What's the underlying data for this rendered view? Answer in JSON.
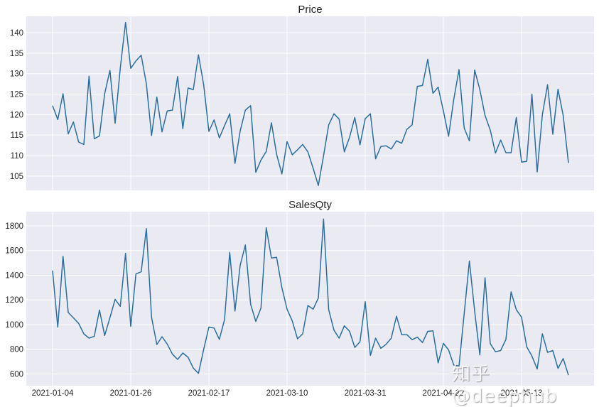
{
  "chart_data": [
    {
      "type": "line",
      "title": "Price",
      "xlabel": "",
      "ylabel": "",
      "ylim": [
        101.5,
        144
      ],
      "yticks": [
        105,
        110,
        115,
        120,
        125,
        130,
        135,
        140
      ],
      "grid": true,
      "legend": null,
      "x_tick_labels": [
        "2021-01-04",
        "2021-01-26",
        "2021-02-17",
        "2021-03-10",
        "2021-03-31",
        "2021-04-22",
        "2021-05-13"
      ],
      "x_tick_labels_visible": false,
      "series": [
        {
          "name": "Price",
          "color": "#2a6f9e",
          "values": [
            122.2,
            118.8,
            125.1,
            115.3,
            118.2,
            113.3,
            112.7,
            129.4,
            114.1,
            114.8,
            125.1,
            130.8,
            117.9,
            131.4,
            142.5,
            131.3,
            133.1,
            134.5,
            127.5,
            114.9,
            124.3,
            115.8,
            120.9,
            121.1,
            129.3,
            116.6,
            126.5,
            126.1,
            134.6,
            127.2,
            115.9,
            118.7,
            114.3,
            117.3,
            120.2,
            108.1,
            116.0,
            121.1,
            122.2,
            105.9,
            108.9,
            111.0,
            118.0,
            110.3,
            105.5,
            113.4,
            110.2,
            111.4,
            112.7,
            110.9,
            106.9,
            102.7,
            109.9,
            117.5,
            120.2,
            118.9,
            110.9,
            114.5,
            119.3,
            112.6,
            119.0,
            120.2,
            109.2,
            112.2,
            112.4,
            111.6,
            113.6,
            113.0,
            116.4,
            117.5,
            126.9,
            127.1,
            133.5,
            125.2,
            126.7,
            120.9,
            114.7,
            123.7,
            131.0,
            116.7,
            113.6,
            130.9,
            126.1,
            119.8,
            116.2,
            110.6,
            113.8,
            110.7,
            110.7,
            119.3,
            108.4,
            108.6,
            125.0,
            106.0,
            120.0,
            127.3,
            115.2,
            126.2,
            119.8,
            108.2
          ]
        }
      ]
    },
    {
      "type": "line",
      "title": "SalesQty",
      "xlabel": "",
      "ylabel": "",
      "ylim": [
        505,
        1915
      ],
      "yticks": [
        600,
        800,
        1000,
        1200,
        1400,
        1600,
        1800
      ],
      "grid": true,
      "legend": null,
      "x_tick_labels": [
        "2021-01-04",
        "2021-01-26",
        "2021-02-17",
        "2021-03-10",
        "2021-03-31",
        "2021-04-22",
        "2021-05-13"
      ],
      "x_tick_labels_visible": true,
      "series": [
        {
          "name": "SalesQty",
          "color": "#2a6f9e",
          "values": [
            1438,
            980,
            1553,
            1098,
            1055,
            1010,
            925,
            890,
            905,
            1118,
            912,
            1055,
            1205,
            1148,
            1578,
            985,
            1410,
            1428,
            1778,
            1060,
            838,
            902,
            843,
            760,
            718,
            770,
            735,
            648,
            605,
            800,
            980,
            972,
            880,
            1040,
            1585,
            1110,
            1480,
            1645,
            1165,
            1025,
            1135,
            1785,
            1540,
            1545,
            1300,
            1125,
            1030,
            885,
            925,
            1155,
            1125,
            1215,
            1855,
            1120,
            955,
            890,
            990,
            945,
            815,
            860,
            1185,
            750,
            890,
            808,
            840,
            890,
            1068,
            918,
            918,
            878,
            898,
            855,
            945,
            950,
            690,
            848,
            795,
            672,
            665,
            1090,
            1515,
            1110,
            755,
            1380,
            845,
            780,
            790,
            880,
            1265,
            1120,
            1060,
            820,
            745,
            640,
            925,
            775,
            790,
            645,
            725,
            590
          ]
        }
      ]
    }
  ],
  "watermark": "知乎 @deephub",
  "colors": {
    "plot_background": "#eaeaf2",
    "grid": "#ffffff",
    "line": "#2a6f9e",
    "text": "#262626"
  }
}
